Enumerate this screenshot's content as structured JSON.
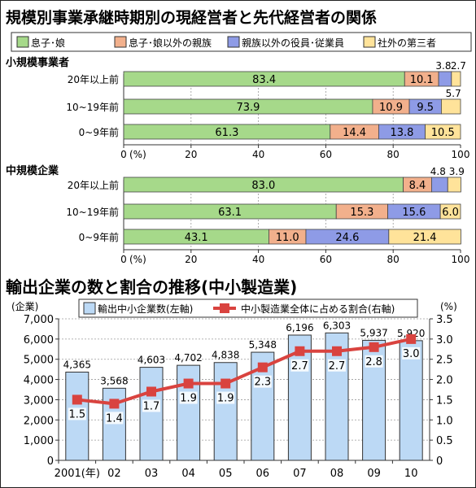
{
  "top": {
    "title": "規模別事業承継時期別の現経営者と先代経営者の関係",
    "legend": [
      {
        "label": "息子･娘",
        "color": "#a6d98a"
      },
      {
        "label": "息子･娘以外の親族",
        "color": "#f2b08c"
      },
      {
        "label": "親族以外の役員･従業員",
        "color": "#8e9be6"
      },
      {
        "label": "社外の第三者",
        "color": "#ffe39a"
      }
    ],
    "axis_ticks": [
      "0",
      "20",
      "40",
      "60",
      "80",
      "100"
    ],
    "axis_unit": "(%)"
  },
  "bottom": {
    "title": "輸出企業の数と割合の推移(中小製造業)",
    "left_unit": "(企業)",
    "right_unit": "(%)",
    "legend_bar": "輸出中小企業数(左軸)",
    "legend_line": "中小製造業全体に占める割合(右軸)",
    "x_labels": [
      "2001(年)",
      "02",
      "03",
      "04",
      "05",
      "06",
      "07",
      "08",
      "09",
      "10"
    ],
    "left_ticks": [
      "0",
      "1,000",
      "2,000",
      "3,000",
      "4,000",
      "5,000",
      "6,000",
      "7,000"
    ],
    "right_ticks": [
      "0",
      "0.5",
      "1.0",
      "1.5",
      "2.0",
      "2.5",
      "3.0",
      "3.5"
    ],
    "bar_labels": [
      "4,365",
      "3,568",
      "4,603",
      "4,702",
      "4,838",
      "5,348",
      "6,196",
      "6,303",
      "5,937",
      "5,920"
    ],
    "line_labels": [
      "1.5",
      "1.4",
      "1.7",
      "1.9",
      "1.9",
      "2.3",
      "2.7",
      "2.7",
      "2.8",
      "3.0"
    ]
  },
  "chart_data": [
    {
      "type": "bar",
      "orientation": "horizontal-stacked",
      "title": "小規模事業者",
      "categories": [
        "20年以上前",
        "10~19年前",
        "0~9年前"
      ],
      "series": [
        {
          "name": "息子･娘",
          "values": [
            83.4,
            73.9,
            61.3
          ],
          "labels": [
            "83.4",
            "73.9",
            "61.3"
          ]
        },
        {
          "name": "息子･娘以外の親族",
          "values": [
            10.1,
            10.9,
            14.4
          ],
          "labels": [
            "10.1",
            "10.9",
            "14.4"
          ]
        },
        {
          "name": "親族以外の役員･従業員",
          "values": [
            3.8,
            9.5,
            13.8
          ],
          "labels": [
            "3.8",
            "9.5",
            "13.8"
          ]
        },
        {
          "name": "社外の第三者",
          "values": [
            2.7,
            5.7,
            10.5
          ],
          "labels": [
            "2.7",
            "5.7",
            "10.5"
          ]
        }
      ],
      "xlim": [
        0,
        100
      ],
      "xlabel": "(%)"
    },
    {
      "type": "bar",
      "orientation": "horizontal-stacked",
      "title": "中規模企業",
      "categories": [
        "20年以上前",
        "10~19年前",
        "0~9年前"
      ],
      "series": [
        {
          "name": "息子･娘",
          "values": [
            83.0,
            63.1,
            43.1
          ],
          "labels": [
            "83.0",
            "63.1",
            "43.1"
          ]
        },
        {
          "name": "息子･娘以外の親族",
          "values": [
            8.4,
            15.3,
            11.0
          ],
          "labels": [
            "8.4",
            "15.3",
            "11.0"
          ]
        },
        {
          "name": "親族以外の役員･従業員",
          "values": [
            4.8,
            15.6,
            24.6
          ],
          "labels": [
            "4.8",
            "15.6",
            "24.6"
          ]
        },
        {
          "name": "社外の第三者",
          "values": [
            3.9,
            6.0,
            21.4
          ],
          "labels": [
            "3.9",
            "6.0",
            "21.4"
          ]
        }
      ],
      "xlim": [
        0,
        100
      ],
      "xlabel": "(%)"
    },
    {
      "type": "bar",
      "title": "輸出企業の数と割合の推移(中小製造業)",
      "categories": [
        "2001",
        "02",
        "03",
        "04",
        "05",
        "06",
        "07",
        "08",
        "09",
        "10"
      ],
      "series": [
        {
          "name": "輸出中小企業数(左軸)",
          "axis": "left",
          "type": "bar",
          "values": [
            4365,
            3568,
            4603,
            4702,
            4838,
            5348,
            6196,
            6303,
            5937,
            5920
          ],
          "color": "#bcd9f5"
        },
        {
          "name": "中小製造業全体に占める割合(右軸)",
          "axis": "right",
          "type": "line",
          "values": [
            1.5,
            1.4,
            1.7,
            1.9,
            1.9,
            2.3,
            2.7,
            2.7,
            2.8,
            3.0
          ],
          "color": "#d9433f"
        }
      ],
      "ylim_left": [
        0,
        7000
      ],
      "ylim_right": [
        0,
        3.5
      ],
      "ylabel_left": "(企業)",
      "ylabel_right": "(%)",
      "grid": true
    }
  ]
}
